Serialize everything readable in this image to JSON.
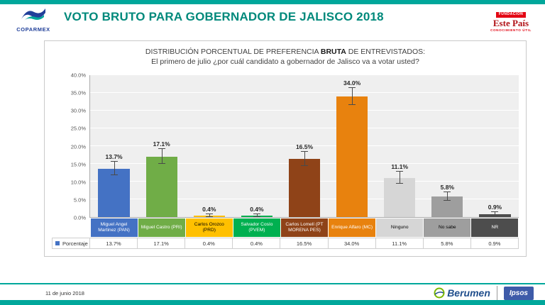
{
  "header": {
    "title": "VOTO BRUTO PARA GOBERNADOR DE JALISCO 2018",
    "coparmex_label": "COPARMEX",
    "estepais": {
      "fundacion": "FUNDACIÓN",
      "name": "Este País",
      "tagline": "CONOCIMIENTO ÚTIL"
    }
  },
  "chart": {
    "title_prefix": "DISTRIBUCIÓN PORCENTUAL DE PREFERENCIA ",
    "title_bold": "BRUTA",
    "title_suffix": " DE ENTREVISTADOS:",
    "subtitle": "El primero de julio ¿por cuál candidato a gobernador de Jalisco va a votar usted?"
  },
  "chart_data": {
    "type": "bar",
    "title": "Distribución porcentual de preferencia bruta de entrevistados",
    "series_name": "Porcentaje",
    "categories": [
      "Miguel Angel Martinez (PAN)",
      "Miguel Castro (PRI)",
      "Carlos Orozco (PRD)",
      "Salvador Cosío (PVEM)",
      "Carlos Lomelí (PT MORENA PES)",
      "Enrique Alfaro (MC)",
      "Ninguno",
      "No sabe",
      "NR"
    ],
    "values": [
      13.7,
      17.1,
      0.4,
      0.4,
      16.5,
      34.0,
      11.1,
      5.8,
      0.9
    ],
    "value_labels": [
      "13.7%",
      "17.1%",
      "0.4%",
      "0.4%",
      "16.5%",
      "34.0%",
      "11.1%",
      "5.8%",
      "0.9%"
    ],
    "error_bars": [
      1.9,
      2.1,
      0.4,
      0.4,
      2.0,
      2.4,
      1.7,
      1.2,
      0.5
    ],
    "bar_colors": [
      "#4472C4",
      "#70AD47",
      "#FFC000",
      "#00B050",
      "#8F4318",
      "#E8820E",
      "#D6D6D6",
      "#9E9E9E",
      "#4D4D4D"
    ],
    "category_bg": [
      "#4472C4",
      "#70AD47",
      "#FFC000",
      "#00B050",
      "#8F4318",
      "#E8820E",
      "#D6D6D6",
      "#9E9E9E",
      "#4D4D4D"
    ],
    "category_fg": [
      "#ffffff",
      "#ffffff",
      "#000000",
      "#ffffff",
      "#ffffff",
      "#ffffff",
      "#000000",
      "#000000",
      "#ffffff"
    ],
    "ylim": [
      0,
      40
    ],
    "ytick_step": 5,
    "ytick_labels": [
      "0.0%",
      "5.0%",
      "10.0%",
      "15.0%",
      "20.0%",
      "25.0%",
      "30.0%",
      "35.0%",
      "40.0%"
    ],
    "legend_position": "bottom-left",
    "grid": true
  },
  "table": {
    "row_label": "Porcentaje",
    "values": [
      "13.7%",
      "17.1%",
      "0.4%",
      "0.4%",
      "16.5%",
      "34.0%",
      "11.1%",
      "5.8%",
      "0.9%"
    ]
  },
  "footer": {
    "date": "11 de junio 2018",
    "berumen_label": "Berumen",
    "ipsos_label": "Ipsos"
  },
  "colors": {
    "accent_teal": "#00A79B",
    "title_teal": "#00897B",
    "coparmex_blue": "#21409A",
    "estepais_red": "#E30613",
    "berumen_blue": "#1F4E8C",
    "ipsos_blue": "#3E5BA9"
  }
}
